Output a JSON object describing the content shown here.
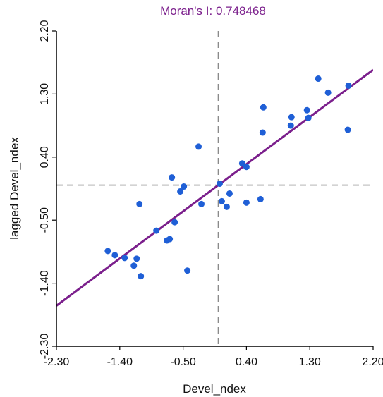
{
  "chart_data": {
    "type": "scatter",
    "title": "Moran's I: 0.748468",
    "xlabel": "Devel_ndex",
    "ylabel": "lagged Devel_ndex",
    "xlim": [
      -2.3,
      2.2
    ],
    "ylim": [
      -2.3,
      2.2
    ],
    "xticks": [
      "-2.30",
      "-1.40",
      "-0.50",
      "0.40",
      "1.30",
      "2.20"
    ],
    "yticks": [
      "-2.30",
      "-1.40",
      "-0.50",
      "0.40",
      "1.30",
      "2.20"
    ],
    "grid": false,
    "reference_lines": {
      "x": 0.0,
      "y": 0.0
    },
    "regression_line": {
      "slope": 0.748468,
      "intercept": 0.0
    },
    "points": [
      {
        "x": -1.57,
        "y": -0.94
      },
      {
        "x": -1.47,
        "y": -1.0
      },
      {
        "x": -1.33,
        "y": -1.04
      },
      {
        "x": -1.2,
        "y": -1.15
      },
      {
        "x": -1.16,
        "y": -1.05
      },
      {
        "x": -1.1,
        "y": -1.3
      },
      {
        "x": -1.12,
        "y": -0.27
      },
      {
        "x": -0.88,
        "y": -0.65
      },
      {
        "x": -0.73,
        "y": -0.79
      },
      {
        "x": -0.69,
        "y": -0.77
      },
      {
        "x": -0.66,
        "y": 0.11
      },
      {
        "x": -0.62,
        "y": -0.53
      },
      {
        "x": -0.54,
        "y": -0.09
      },
      {
        "x": -0.49,
        "y": -0.02
      },
      {
        "x": -0.44,
        "y": -1.22
      },
      {
        "x": -0.28,
        "y": 0.55
      },
      {
        "x": -0.24,
        "y": -0.27
      },
      {
        "x": 0.02,
        "y": 0.02
      },
      {
        "x": 0.05,
        "y": -0.23
      },
      {
        "x": 0.12,
        "y": -0.31
      },
      {
        "x": 0.16,
        "y": -0.12
      },
      {
        "x": 0.34,
        "y": 0.31
      },
      {
        "x": 0.4,
        "y": 0.26
      },
      {
        "x": 0.4,
        "y": -0.25
      },
      {
        "x": 0.6,
        "y": -0.2
      },
      {
        "x": 0.63,
        "y": 0.75
      },
      {
        "x": 0.64,
        "y": 1.11
      },
      {
        "x": 1.03,
        "y": 0.85
      },
      {
        "x": 1.04,
        "y": 0.97
      },
      {
        "x": 1.26,
        "y": 1.07
      },
      {
        "x": 1.28,
        "y": 0.96
      },
      {
        "x": 1.42,
        "y": 1.52
      },
      {
        "x": 1.56,
        "y": 1.32
      },
      {
        "x": 1.84,
        "y": 0.79
      },
      {
        "x": 1.85,
        "y": 1.42
      }
    ],
    "colors": {
      "points": "#1f5fd6",
      "regression_line": "#7b1f8c",
      "title": "#7b1f8c",
      "reference_lines": "#8a8a8a",
      "axes": "#000000"
    }
  }
}
